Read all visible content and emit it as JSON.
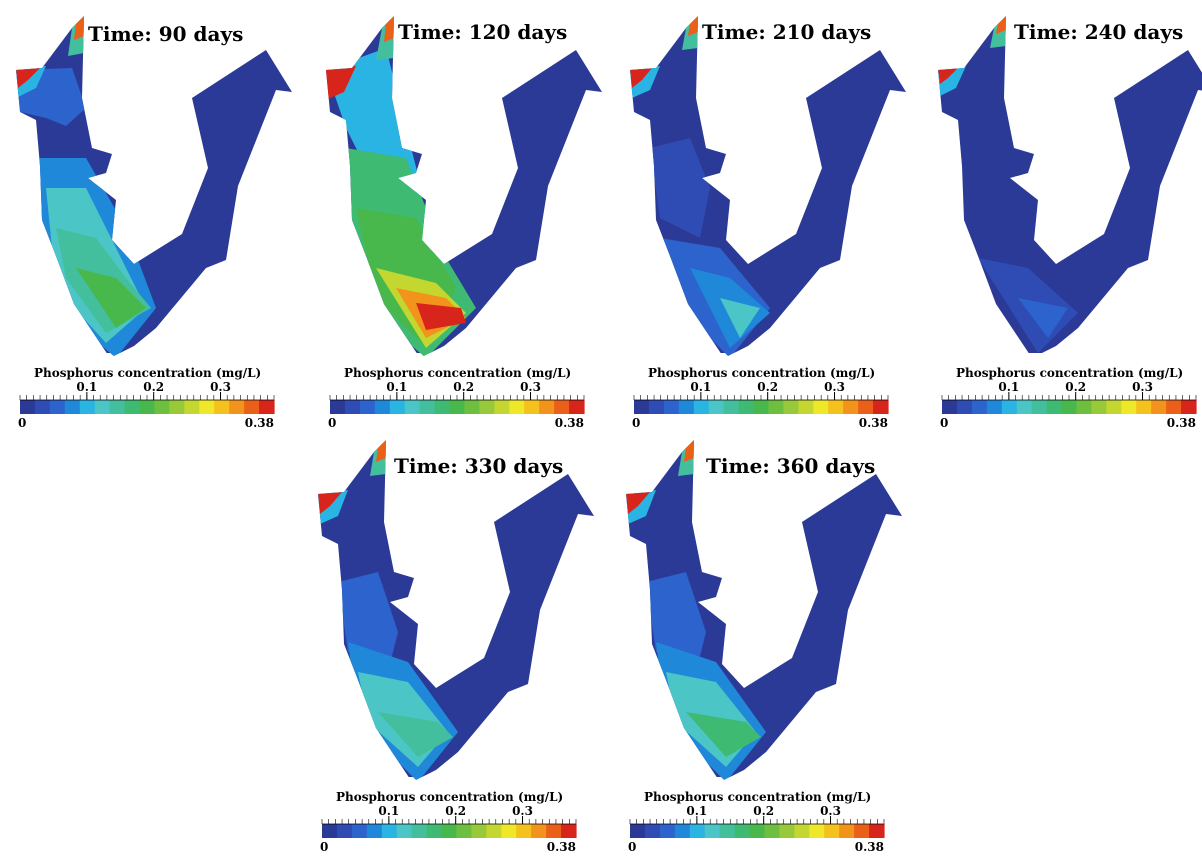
{
  "colorbar": {
    "title": "Phosphorus concentration (mg/L)",
    "min_label": "0",
    "max_label": "0.38",
    "min": 0,
    "max": 0.38,
    "ticks": [
      "0.1",
      "0.2",
      "0.3"
    ],
    "tick_values": [
      0.1,
      0.2,
      0.3
    ],
    "colors": [
      "#2b3a97",
      "#2f4cb5",
      "#2d63cc",
      "#1f88d8",
      "#2ab4e3",
      "#4bc5c6",
      "#44bf9e",
      "#3fba72",
      "#49b84c",
      "#6ebf3f",
      "#97c93a",
      "#c4d730",
      "#efe828",
      "#f5c11f",
      "#f2941b",
      "#ea6019",
      "#d8251b"
    ]
  },
  "panels": [
    {
      "time_label": "Time:  90 days",
      "state": "d90"
    },
    {
      "time_label": "Time:  120 days",
      "state": "d120"
    },
    {
      "time_label": "Time:  210 days",
      "state": "d210"
    },
    {
      "time_label": "Time:  240 days",
      "state": "d240"
    },
    {
      "time_label": "Time:  330 days",
      "state": "d330"
    },
    {
      "time_label": "Time:  360 days",
      "state": "d360"
    }
  ]
}
